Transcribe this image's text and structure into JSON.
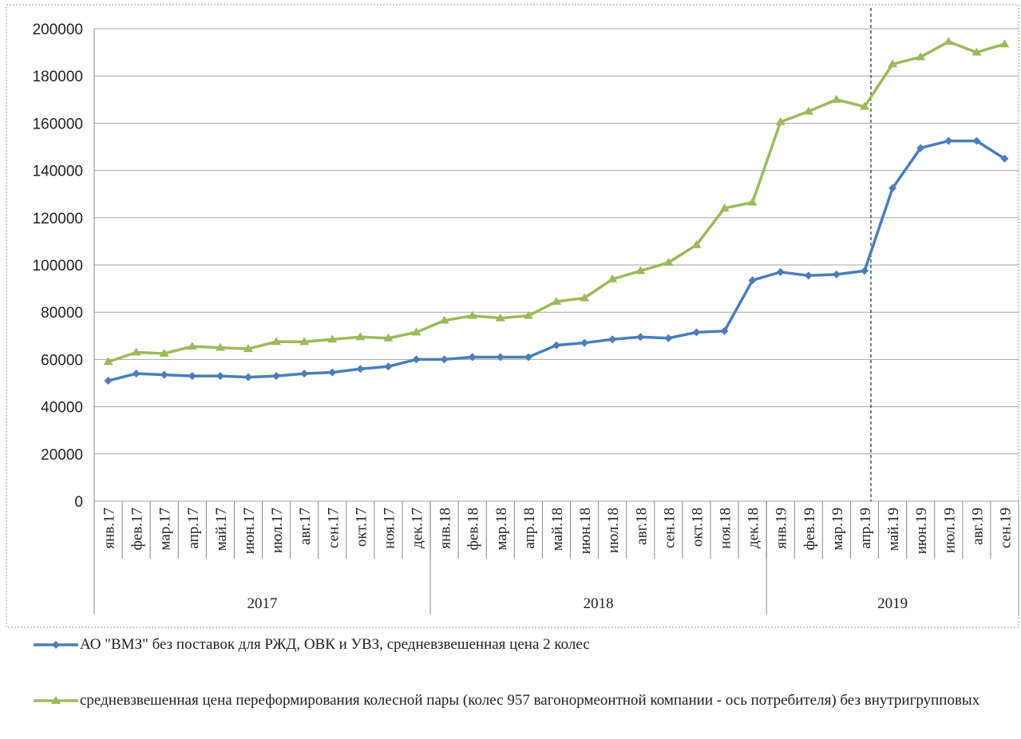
{
  "chart_data": {
    "type": "line",
    "categories": [
      "янв.17",
      "фев.17",
      "мар.17",
      "апр.17",
      "май.17",
      "июн.17",
      "июл.17",
      "авг.17",
      "сен.17",
      "окт.17",
      "ноя.17",
      "дек.17",
      "янв.18",
      "фев.18",
      "мар.18",
      "апр.18",
      "май.18",
      "июн.18",
      "июл.18",
      "авг.18",
      "сен.18",
      "окт.18",
      "ноя.18",
      "дек.18",
      "янв.19",
      "фев.19",
      "мар.19",
      "апр.19",
      "май.19",
      "июн.19",
      "июл.19",
      "авг.19",
      "сен.19"
    ],
    "category_groups": [
      "2017",
      "2018",
      "2019"
    ],
    "series": [
      {
        "name": "АО \"ВМЗ\" без поставок для РЖД, ОВК и УВЗ, средневзвешенная цена 2 колес",
        "color": "#4a7ebb",
        "marker": "diamond",
        "values": [
          51000,
          54000,
          53500,
          53000,
          53000,
          52500,
          53000,
          54000,
          54500,
          56000,
          57000,
          60000,
          60000,
          61000,
          61000,
          61000,
          66000,
          67000,
          68500,
          69500,
          69000,
          71500,
          72000,
          93500,
          97000,
          95500,
          96000,
          97500,
          132500,
          149500,
          152500,
          152500,
          145000
        ]
      },
      {
        "name": "средневзвешенная цена переформирования колесной пары (колес 957 вагонормеонтной компании - ось потребителя) без внутригрупповых",
        "color": "#9bbb59",
        "marker": "triangle",
        "values": [
          59000,
          63000,
          62500,
          65500,
          65000,
          64500,
          67500,
          67500,
          68500,
          69500,
          69000,
          71500,
          76500,
          78500,
          77500,
          78500,
          84500,
          86000,
          94000,
          97500,
          101000,
          108500,
          124000,
          126500,
          160500,
          165000,
          170000,
          167000,
          185000,
          188000,
          194500,
          190000,
          193500
        ]
      }
    ],
    "ylim": [
      0,
      200000
    ],
    "yticks": [
      0,
      20000,
      40000,
      60000,
      80000,
      100000,
      120000,
      140000,
      160000,
      180000,
      200000
    ],
    "grid": true
  }
}
